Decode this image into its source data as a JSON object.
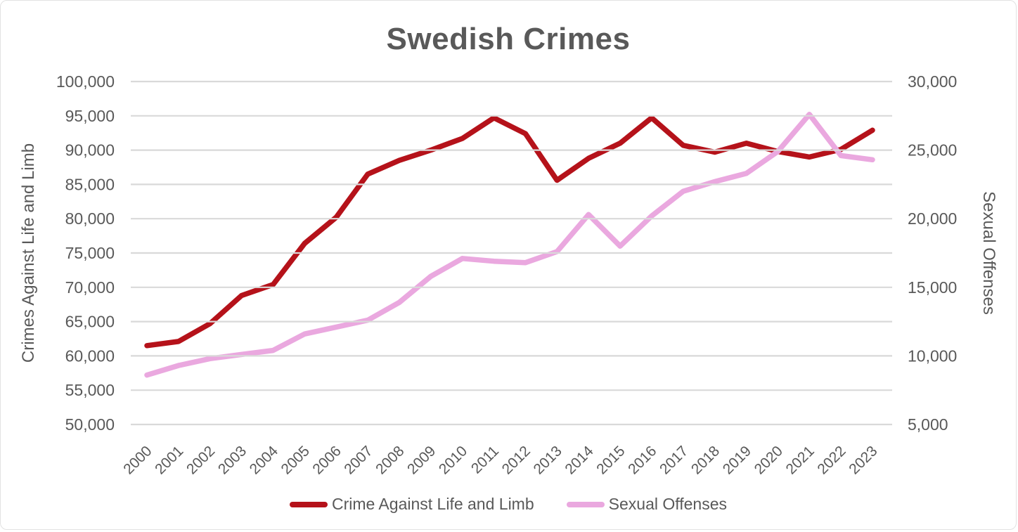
{
  "title": "Swedish Crimes",
  "colors": {
    "series1": "#b5121a",
    "series2": "#eaa8df",
    "grid": "#d9d9d9",
    "text": "#595959",
    "card_border": "#e2e2e2"
  },
  "chart_data": {
    "type": "line",
    "title": "Swedish Crimes",
    "x": [
      "2000",
      "2001",
      "2002",
      "2003",
      "2004",
      "2005",
      "2006",
      "2007",
      "2008",
      "2009",
      "2010",
      "2011",
      "2012",
      "2013",
      "2014",
      "2015",
      "2016",
      "2017",
      "2018",
      "2019",
      "2020",
      "2021",
      "2022",
      "2023"
    ],
    "series": [
      {
        "name": "Crime Against Life and Limb",
        "axis": "left",
        "color": "#b5121a",
        "values": [
          61500,
          62100,
          64700,
          68800,
          70400,
          76400,
          80200,
          86500,
          88500,
          90000,
          91700,
          94700,
          92400,
          85600,
          88800,
          91000,
          94700,
          90700,
          89700,
          91000,
          89800,
          89000,
          90100,
          92900
        ]
      },
      {
        "name": "Sexual Offenses",
        "axis": "right",
        "color": "#eaa8df",
        "values": [
          8600,
          9300,
          9800,
          10100,
          10400,
          11600,
          12100,
          12600,
          13900,
          15800,
          17100,
          16900,
          16800,
          17600,
          20300,
          18000,
          20200,
          22000,
          22700,
          23300,
          24900,
          27600,
          24600,
          24300
        ]
      }
    ],
    "left_axis": {
      "label": "Crimes Against Life and Limb",
      "min": 50000,
      "max": 100000,
      "step": 5000,
      "ticks": [
        "50,000",
        "55,000",
        "60,000",
        "65,000",
        "70,000",
        "75,000",
        "80,000",
        "85,000",
        "90,000",
        "95,000",
        "100,000"
      ]
    },
    "right_axis": {
      "label": "Sexual Offenses",
      "min": 5000,
      "max": 30000,
      "step": 5000,
      "ticks": [
        "5,000",
        "10,000",
        "15,000",
        "20,000",
        "25,000",
        "30,000"
      ]
    },
    "grid": true,
    "legend_position": "bottom"
  },
  "legend": {
    "items": [
      {
        "label": "Crime Against Life and Limb"
      },
      {
        "label": "Sexual Offenses"
      }
    ]
  }
}
